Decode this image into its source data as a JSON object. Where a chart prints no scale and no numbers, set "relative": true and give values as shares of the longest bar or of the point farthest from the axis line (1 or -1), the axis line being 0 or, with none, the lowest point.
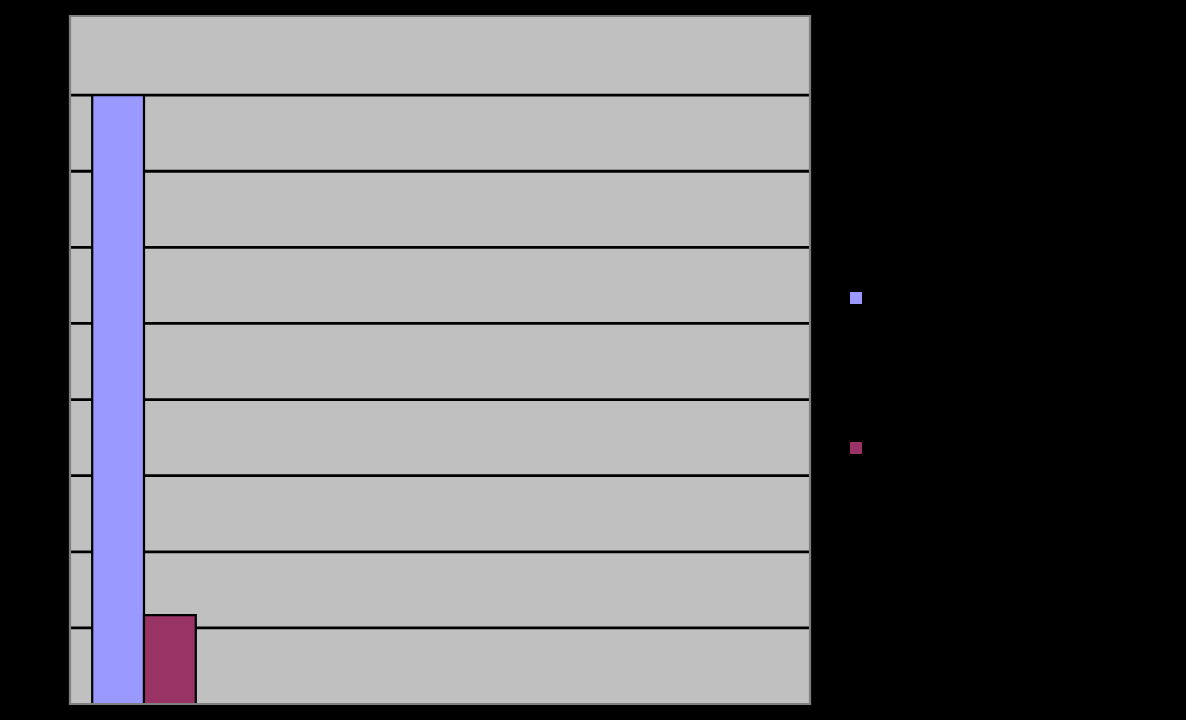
{
  "chart_data": {
    "type": "bar",
    "relative": true,
    "categories": [
      null
    ],
    "series": [
      {
        "color": "#9999ff",
        "values": [
          1
        ]
      },
      {
        "color": "#993366",
        "values": [
          0.146
        ]
      }
    ],
    "grid": "y"
  }
}
